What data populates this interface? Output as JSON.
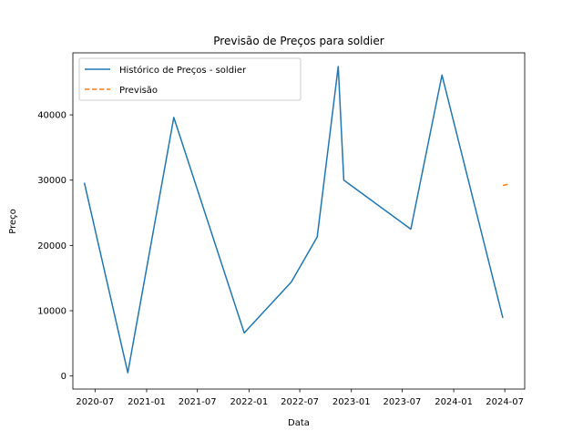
{
  "chart_data": {
    "type": "line",
    "title": "Previsão de Preços para soldier",
    "xlabel": "Data",
    "ylabel": "Preço",
    "xlim": [
      "2020-04-13",
      "2024-09-10"
    ],
    "ylim": [
      -2000,
      49500
    ],
    "grid": false,
    "legend_position": "top-left",
    "x_ticks": [
      {
        "date": "2020-07-01",
        "label": "2020-07"
      },
      {
        "date": "2021-01-01",
        "label": "2021-01"
      },
      {
        "date": "2021-07-01",
        "label": "2021-07"
      },
      {
        "date": "2022-01-01",
        "label": "2022-01"
      },
      {
        "date": "2022-07-01",
        "label": "2022-07"
      },
      {
        "date": "2023-01-01",
        "label": "2023-01"
      },
      {
        "date": "2023-07-01",
        "label": "2023-07"
      },
      {
        "date": "2024-01-01",
        "label": "2024-01"
      },
      {
        "date": "2024-07-01",
        "label": "2024-07"
      }
    ],
    "y_ticks": [
      {
        "value": 0,
        "label": "0"
      },
      {
        "value": 10000,
        "label": "10000"
      },
      {
        "value": 20000,
        "label": "20000"
      },
      {
        "value": 30000,
        "label": "30000"
      },
      {
        "value": 40000,
        "label": "40000"
      }
    ],
    "series": [
      {
        "name": "Histórico de Preços - soldier",
        "color": "#1f77b4",
        "style": "solid",
        "points": [
          {
            "x": "2020-05-24",
            "y": 29600
          },
          {
            "x": "2020-10-26",
            "y": 500
          },
          {
            "x": "2021-04-08",
            "y": 39600
          },
          {
            "x": "2021-12-15",
            "y": 6600
          },
          {
            "x": "2022-06-01",
            "y": 14400
          },
          {
            "x": "2022-09-01",
            "y": 21300
          },
          {
            "x": "2022-11-15",
            "y": 47400
          },
          {
            "x": "2022-12-05",
            "y": 30000
          },
          {
            "x": "2023-08-01",
            "y": 22500
          },
          {
            "x": "2023-11-20",
            "y": 46100
          },
          {
            "x": "2024-06-24",
            "y": 8900
          }
        ]
      },
      {
        "name": "Previsão",
        "color": "#ff7f0e",
        "style": "dashed",
        "points": [
          {
            "x": "2024-06-24",
            "y": 29200
          },
          {
            "x": "2024-07-15",
            "y": 29400
          }
        ]
      }
    ]
  }
}
